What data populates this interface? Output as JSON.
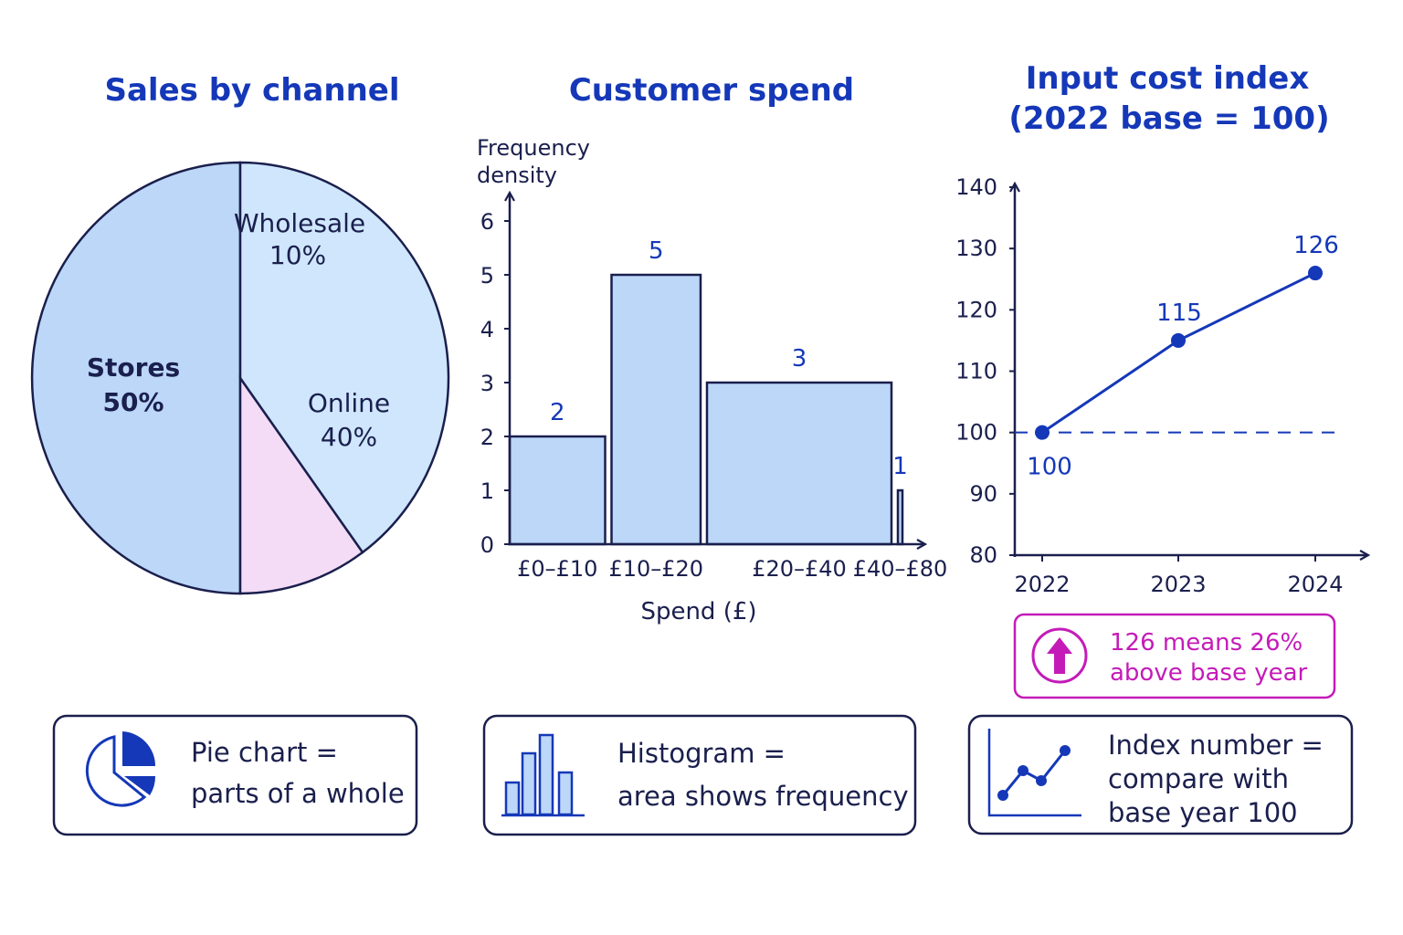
{
  "colors": {
    "title": "#1538b8",
    "ink": "#1a1f4d",
    "bar_fill": "#bcd7f8",
    "pie_stores": "#bcd7f8",
    "pie_online": "#cfe6fc",
    "pie_wholesale": "#f4dcf6",
    "accent": "#c41bb8",
    "line": "#1538b8"
  },
  "chart_data": [
    {
      "type": "pie",
      "title": "Sales by channel",
      "slices": [
        {
          "name": "Stores",
          "value": 50,
          "label": "50%",
          "color": "#bcd7f8"
        },
        {
          "name": "Wholesale",
          "value": 10,
          "label": "10%",
          "color": "#f4dcf6"
        },
        {
          "name": "Online",
          "value": 40,
          "label": "40%",
          "color": "#cfe6fc"
        }
      ]
    },
    {
      "type": "bar",
      "subtype": "histogram",
      "title": "Customer spend",
      "xlabel": "Spend (£)",
      "ylabel_lines": [
        "Frequency",
        "density"
      ],
      "ylim": [
        0,
        6
      ],
      "yticks": [
        "0",
        "1",
        "2",
        "3",
        "4",
        "5",
        "6"
      ],
      "bins": [
        {
          "label": "£0–£10",
          "from": 0,
          "to": 10,
          "value": 2,
          "value_label": "2"
        },
        {
          "label": "£10–£20",
          "from": 10,
          "to": 20,
          "value": 5,
          "value_label": "5"
        },
        {
          "label": "£20–£40",
          "from": 20,
          "to": 40,
          "value": 3,
          "value_label": "3"
        },
        {
          "label": "£40–£80",
          "from": 40,
          "to": 80,
          "value": 1,
          "value_label": "1"
        }
      ]
    },
    {
      "type": "line",
      "title_lines": [
        "Input cost index",
        "(2022 base = 100)"
      ],
      "x": [
        "2022",
        "2023",
        "2024"
      ],
      "ylim": [
        80,
        140
      ],
      "yticks": [
        "80",
        "90",
        "100",
        "110",
        "120",
        "130",
        "140"
      ],
      "series": [
        {
          "values": [
            100,
            115,
            126
          ]
        }
      ],
      "value_labels": [
        "100",
        "115",
        "126"
      ],
      "reference_line": 100,
      "note_lines": [
        "126 means 26%",
        "above base year"
      ]
    }
  ],
  "cards": [
    {
      "icon": "pie-chart-icon",
      "lines": [
        "Pie chart =",
        "parts of a whole"
      ]
    },
    {
      "icon": "histogram-icon",
      "lines": [
        "Histogram =",
        "area shows frequency"
      ]
    },
    {
      "icon": "line-chart-icon",
      "lines": [
        "Index number =",
        "compare with",
        "base year 100"
      ]
    }
  ]
}
